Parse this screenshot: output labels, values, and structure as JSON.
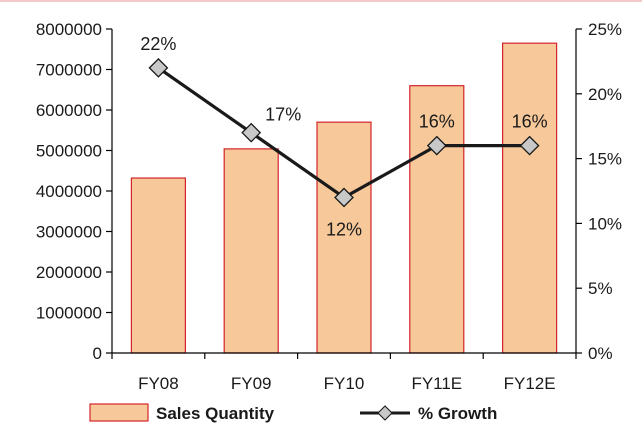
{
  "chart_data": {
    "type": "bar",
    "categories": [
      "FY08",
      "FY09",
      "FY10",
      "FY11E",
      "FY12E"
    ],
    "series": [
      {
        "name": "Sales Quantity",
        "type": "bar",
        "axis": "left",
        "values": [
          4320000,
          5040000,
          5700000,
          6600000,
          7650000
        ],
        "color": "#f6c89a",
        "edge_color": "#d4242a"
      },
      {
        "name": "% Growth",
        "type": "line",
        "axis": "right",
        "values": [
          22,
          17,
          12,
          16,
          16
        ],
        "data_labels": [
          "22%",
          "17%",
          "12%",
          "16%",
          "16%"
        ],
        "color": "#1a1a1a",
        "marker_color": "#c8c8c8"
      }
    ],
    "left_axis": {
      "ylim": [
        0,
        8000000
      ],
      "ticks": [
        "0",
        "1000000",
        "2000000",
        "3000000",
        "4000000",
        "5000000",
        "6000000",
        "7000000",
        "8000000"
      ]
    },
    "right_axis": {
      "ylim": [
        0,
        25
      ],
      "ticks": [
        "0%",
        "5%",
        "10%",
        "15%",
        "20%",
        "25%"
      ]
    },
    "grid": false,
    "legend_position": "bottom"
  }
}
